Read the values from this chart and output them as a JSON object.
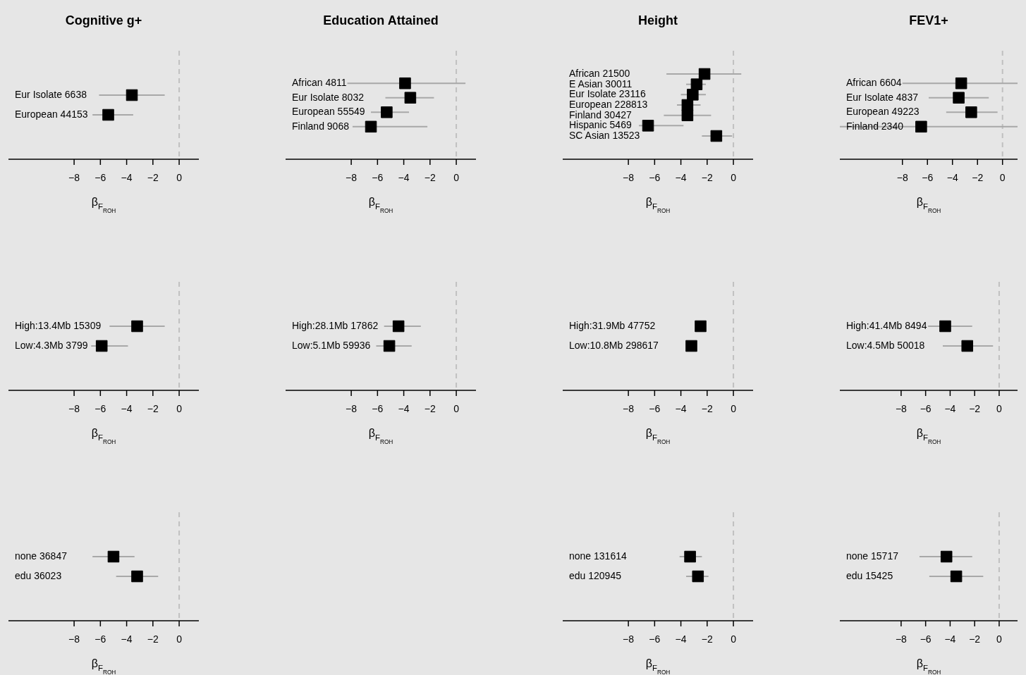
{
  "chart_data": [
    {
      "type": "scatter",
      "orientation": "horizontal",
      "title": "Cognitive g+",
      "xlabel": "β$_{F}$$_{ROH}$",
      "marker": "square",
      "color": "#000000",
      "categories": [
        "Eur Isolate 6638",
        "European 44153"
      ],
      "values": [
        -3.6,
        -5.4
      ],
      "errors": [
        [
          -6.1,
          -1.1
        ],
        [
          -6.6,
          -3.5
        ]
      ],
      "xlim": [
        -13,
        1.5
      ],
      "xticks": [
        -8,
        -6,
        -4,
        -2,
        0
      ],
      "ref_lines": [
        {
          "axis": "x",
          "value": 0,
          "line_style": "dashed",
          "color": "#c0c0c0"
        }
      ]
    },
    {
      "type": "scatter",
      "orientation": "horizontal",
      "title": "Education Attained",
      "xlabel": "β$_{F}$$_{ROH}$",
      "marker": "square",
      "color": "#000000",
      "categories": [
        "African 4811",
        "Eur Isolate 8032",
        "European 55549",
        "Finland 9068"
      ],
      "values": [
        -3.9,
        -3.5,
        -5.3,
        -6.5
      ],
      "errors": [
        [
          -8.3,
          0.7
        ],
        [
          -5.4,
          -1.7
        ],
        [
          -6.5,
          -3.6
        ],
        [
          -7.9,
          -2.2
        ]
      ],
      "xlim": [
        -13,
        1.5
      ],
      "xticks": [
        -8,
        -6,
        -4,
        -2,
        0
      ],
      "ref_lines": [
        {
          "axis": "x",
          "value": 0,
          "line_style": "dashed",
          "color": "#c0c0c0"
        }
      ]
    },
    {
      "type": "scatter",
      "orientation": "horizontal",
      "title": "Height",
      "xlabel": "β$_{F}$$_{ROH}$",
      "marker": "square",
      "color": "#000000",
      "categories": [
        "African 21500",
        "E Asian 30011",
        "Eur Isolate 23116",
        "European 228813",
        "Finland 30427",
        "Hispanic 5469",
        "SC Asian 13523"
      ],
      "values": [
        -2.2,
        -2.8,
        -3.1,
        -3.5,
        -3.5,
        -6.5,
        -1.3
      ],
      "errors": [
        [
          -5.1,
          0.6
        ],
        [
          -3.6,
          -2.1
        ],
        [
          -4.0,
          -2.1
        ],
        [
          -4.3,
          -2.5
        ],
        [
          -5.3,
          -1.7
        ],
        [
          -7.2,
          -3.8
        ],
        [
          -2.4,
          -0.1
        ]
      ],
      "xlim": [
        -13,
        1.5
      ],
      "xticks": [
        -8,
        -6,
        -4,
        -2,
        0
      ],
      "ref_lines": [
        {
          "axis": "x",
          "value": 0,
          "line_style": "dashed",
          "color": "#c0c0c0"
        }
      ]
    },
    {
      "type": "scatter",
      "orientation": "horizontal",
      "title": "FEV1+",
      "xlabel": "β$_{F}$$_{ROH}$",
      "marker": "square",
      "color": "#000000",
      "categories": [
        "African 6604",
        "Eur Isolate 4837",
        "European 49223",
        "Finland 2340"
      ],
      "values": [
        -3.3,
        -3.5,
        -2.5,
        -6.5
      ],
      "errors": [
        [
          -8.0,
          1.2
        ],
        [
          -5.9,
          -1.1
        ],
        [
          -4.5,
          -0.4
        ],
        [
          -13.0,
          1.2
        ]
      ],
      "xlim": [
        -13,
        1.2
      ],
      "xticks": [
        -8,
        -6,
        -4,
        -2,
        0
      ],
      "ref_lines": [
        {
          "axis": "x",
          "value": 0,
          "line_style": "dashed",
          "color": "#c0c0c0"
        }
      ]
    },
    {
      "type": "scatter",
      "orientation": "horizontal",
      "xlabel": "β$_{F}$$_{ROH}$",
      "marker": "square",
      "color": "#000000",
      "categories": [
        "High:13.4Mb 15309",
        "Low:4.3Mb 3799"
      ],
      "values": [
        -3.2,
        -5.9
      ],
      "errors": [
        [
          -5.3,
          -1.1
        ],
        [
          -6.7,
          -3.9
        ]
      ],
      "xlim": [
        -13,
        1.5
      ],
      "xticks": [
        -8,
        -6,
        -4,
        -2,
        0
      ],
      "ref_lines": [
        {
          "axis": "x",
          "value": 0,
          "line_style": "dashed",
          "color": "#c0c0c0"
        }
      ]
    },
    {
      "type": "scatter",
      "orientation": "horizontal",
      "xlabel": "β$_{F}$$_{ROH}$",
      "marker": "square",
      "color": "#000000",
      "categories": [
        "High:28.1Mb 17862",
        "Low:5.1Mb 59936"
      ],
      "values": [
        -4.4,
        -5.1
      ],
      "errors": [
        [
          -5.5,
          -2.7
        ],
        [
          -6.1,
          -3.4
        ]
      ],
      "xlim": [
        -13,
        1.5
      ],
      "xticks": [
        -8,
        -6,
        -4,
        -2,
        0
      ],
      "ref_lines": [
        {
          "axis": "x",
          "value": 0,
          "line_style": "dashed",
          "color": "#c0c0c0"
        }
      ]
    },
    {
      "type": "scatter",
      "orientation": "horizontal",
      "xlabel": "β$_{F}$$_{ROH}$",
      "marker": "square",
      "color": "#000000",
      "categories": [
        "High:31.9Mb 47752",
        "Low:10.8Mb 298617"
      ],
      "values": [
        -2.5,
        -3.2
      ],
      "errors": [
        null,
        null
      ],
      "xlim": [
        -13,
        1.5
      ],
      "xticks": [
        -8,
        -6,
        -4,
        -2,
        0
      ],
      "ref_lines": [
        {
          "axis": "x",
          "value": 0,
          "line_style": "dashed",
          "color": "#c0c0c0"
        }
      ]
    },
    {
      "type": "scatter",
      "orientation": "horizontal",
      "xlabel": "β$_{F}$$_{ROH}$",
      "marker": "square",
      "color": "#000000",
      "categories": [
        "High:41.4Mb 8494",
        "Low:4.5Mb 50018"
      ],
      "values": [
        -4.4,
        -2.6
      ],
      "errors": [
        [
          -5.8,
          -2.2
        ],
        [
          -4.6,
          -0.5
        ]
      ],
      "xlim": [
        -13,
        1.5
      ],
      "xticks": [
        -8,
        -6,
        -4,
        -2,
        0
      ],
      "ref_lines": [
        {
          "axis": "x",
          "value": 0,
          "line_style": "dashed",
          "color": "#c0c0c0"
        }
      ]
    },
    {
      "type": "scatter",
      "orientation": "horizontal",
      "xlabel": "β$_{F}$$_{ROH}$",
      "marker": "square",
      "color": "#000000",
      "categories": [
        "none 36847",
        "edu 36023"
      ],
      "values": [
        -5.0,
        -3.2
      ],
      "errors": [
        [
          -6.6,
          -3.4
        ],
        [
          -4.8,
          -1.6
        ]
      ],
      "xlim": [
        -13,
        1.5
      ],
      "xticks": [
        -8,
        -6,
        -4,
        -2,
        0
      ],
      "ref_lines": [
        {
          "axis": "x",
          "value": 0,
          "line_style": "dashed",
          "color": "#c0c0c0"
        }
      ]
    },
    {
      "type": "scatter",
      "orientation": "horizontal",
      "xlabel": "β$_{F}$$_{ROH}$",
      "marker": "square",
      "color": "#000000",
      "categories": [
        "none 131614",
        "edu 120945"
      ],
      "values": [
        -3.3,
        -2.7
      ],
      "errors": [
        [
          -4.1,
          -2.4
        ],
        [
          -3.6,
          -1.9
        ]
      ],
      "xlim": [
        -13,
        1.5
      ],
      "xticks": [
        -8,
        -6,
        -4,
        -2,
        0
      ],
      "ref_lines": [
        {
          "axis": "x",
          "value": 0,
          "line_style": "dashed",
          "color": "#c0c0c0"
        }
      ]
    },
    {
      "type": "scatter",
      "orientation": "horizontal",
      "xlabel": "β$_{F}$$_{ROH}$",
      "marker": "square",
      "color": "#000000",
      "categories": [
        "none 15717",
        "edu 15425"
      ],
      "values": [
        -4.3,
        -3.5
      ],
      "errors": [
        [
          -6.5,
          -2.2
        ],
        [
          -5.7,
          -1.3
        ]
      ],
      "xlim": [
        -13,
        1.5
      ],
      "xticks": [
        -8,
        -6,
        -4,
        -2,
        0
      ],
      "ref_lines": [
        {
          "axis": "x",
          "value": 0,
          "line_style": "dashed",
          "color": "#c0c0c0"
        }
      ]
    }
  ]
}
